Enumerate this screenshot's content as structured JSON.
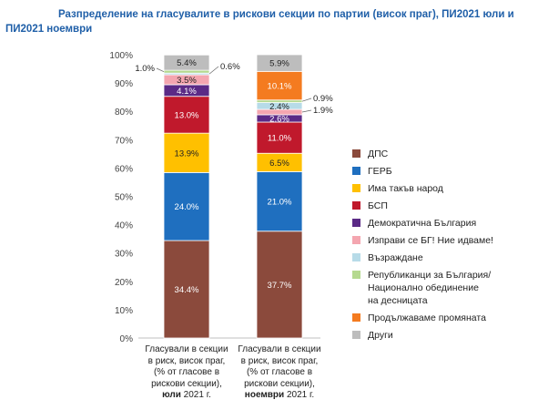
{
  "title": "Разпределение на гласувалите в рискови секции по партии (висок праг), ПИ2021 юли и ПИ2021 ноември",
  "chart_data": {
    "type": "bar",
    "stacked": true,
    "ylim": [
      0,
      100
    ],
    "yticks": [
      "0%",
      "10%",
      "20%",
      "30%",
      "40%",
      "50%",
      "60%",
      "70%",
      "80%",
      "90%",
      "100%"
    ],
    "categories": [
      {
        "lines": [
          "Гласували в секции",
          "в риск, висок праг,",
          "(% от гласове в",
          "рискови секции),"
        ],
        "bold": "юли",
        "suffix": " 2021 г."
      },
      {
        "lines": [
          "Гласували в секции",
          "в риск, висок праг,",
          "(% от гласове в",
          "рискови секции),"
        ],
        "bold": "ноември",
        "suffix": " 2021 г."
      }
    ],
    "series": [
      {
        "name": "ДПС",
        "color": "#8b4a3c",
        "values": [
          34.4,
          37.7
        ],
        "labels": [
          "34.4%",
          "37.7%"
        ]
      },
      {
        "name": "ГЕРБ",
        "color": "#1f6fbf",
        "values": [
          24.0,
          21.0
        ],
        "labels": [
          "24.0%",
          "21.0%"
        ]
      },
      {
        "name": "Има такъв народ",
        "color": "#ffc000",
        "values": [
          13.9,
          6.5
        ],
        "labels": [
          "13.9%",
          "6.5%"
        ]
      },
      {
        "name": "БСП",
        "color": "#c0192c",
        "values": [
          13.0,
          11.0
        ],
        "labels": [
          "13.0%",
          "11.0%"
        ]
      },
      {
        "name": "Демократична България",
        "color": "#5b2a86",
        "values": [
          4.1,
          2.6
        ],
        "labels": [
          "4.1%",
          "2.6%"
        ]
      },
      {
        "name": "Изправи се БГ! Ние идваме!",
        "color": "#f4a6b0",
        "values": [
          3.5,
          1.9
        ],
        "labels": [
          "3.5%",
          "1.9%"
        ]
      },
      {
        "name": "Възраждане",
        "color": "#b7dbe8",
        "values": [
          0.6,
          2.4
        ],
        "labels": [
          "0.6%",
          "2.4%"
        ]
      },
      {
        "name": "Републиканци за България/ Национално обединение на десницата",
        "color": "#b5d98f",
        "values": [
          1.0,
          0.9
        ],
        "labels": [
          "1.0%",
          "0.9%"
        ]
      },
      {
        "name": "Продължаваме промяната",
        "color": "#f47b20",
        "values": [
          0,
          10.1
        ],
        "labels": [
          "",
          "10.1%"
        ]
      },
      {
        "name": "Други",
        "color": "#bdbdbd",
        "values": [
          5.4,
          5.9
        ],
        "labels": [
          "5.4%",
          "5.9%"
        ]
      }
    ],
    "legend_position": "right",
    "legend_lines": {
      "Републиканци за България/ Национално обединение на десницата": [
        "Републиканци за България/",
        "Национално обединение",
        "на десницата"
      ]
    },
    "legend_order": [
      "ДПС",
      "ГЕРБ",
      "Има такъв народ",
      "БСП",
      "Демократична България",
      "Изправи се БГ! Ние идваме!",
      "Възраждане",
      "Републиканци за България/ Национално обединение на десницата",
      "Продължаваме промяната",
      "Други"
    ],
    "grid": false
  }
}
